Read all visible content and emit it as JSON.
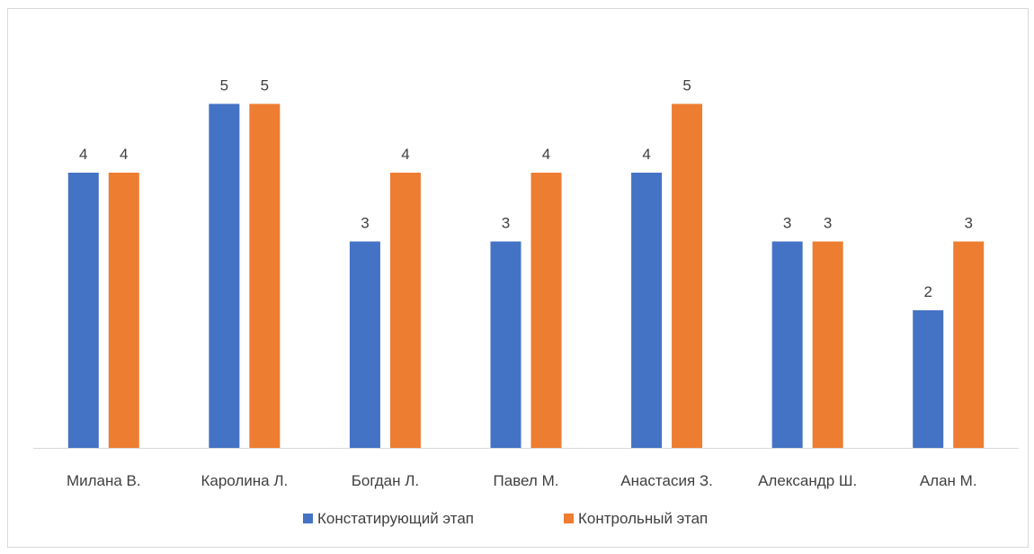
{
  "chart_data": {
    "type": "bar",
    "categories": [
      "Милана В.",
      "Каролина Л.",
      "Богдан Л.",
      "Павел М.",
      "Анастасия З.",
      "Александр Ш.",
      "Алан М."
    ],
    "series": [
      {
        "name": "Констатирующий этап",
        "color": "#4472c4",
        "values": [
          4,
          5,
          3,
          3,
          4,
          3,
          2
        ]
      },
      {
        "name": "Контрольный этап",
        "color": "#ed7d31",
        "values": [
          4,
          5,
          4,
          4,
          5,
          3,
          3
        ]
      }
    ],
    "ylim": [
      0,
      5
    ],
    "grid": false,
    "legend_position": "bottom"
  }
}
